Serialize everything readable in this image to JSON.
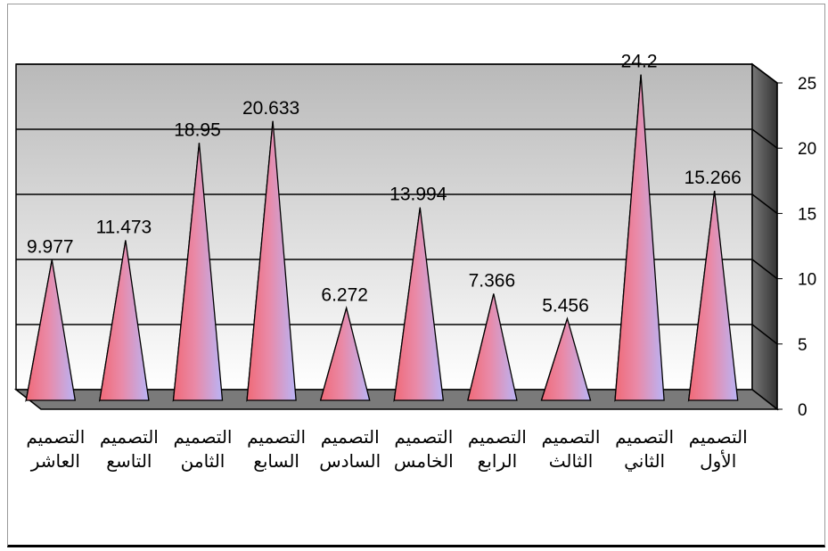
{
  "chart_data": {
    "type": "bar",
    "shape": "pyramid-3d",
    "categories": [
      [
        "التصميم",
        "العاشر"
      ],
      [
        "التصميم",
        "التاسع"
      ],
      [
        "التصميم",
        "الثامن"
      ],
      [
        "التصميم",
        "السابع"
      ],
      [
        "التصميم",
        "السادس"
      ],
      [
        "التصميم",
        "الخامس"
      ],
      [
        "التصميم",
        "الرابع"
      ],
      [
        "التصميم",
        "الثالث"
      ],
      [
        "التصميم",
        "الثاني"
      ],
      [
        "التصميم",
        "الأول"
      ]
    ],
    "values": [
      9.977,
      11.473,
      18.95,
      20.633,
      6.272,
      13.994,
      7.366,
      5.456,
      24.2,
      15.266
    ],
    "data_labels": [
      "9.977",
      "11.473",
      "18.95",
      "20.633",
      "6.272",
      "13.994",
      "7.366",
      "5.456",
      "24.2",
      "15.266"
    ],
    "y_ticks": [
      "0",
      "5",
      "10",
      "15",
      "20",
      "25"
    ],
    "ylim": [
      0,
      25
    ],
    "y_axis_side": "right",
    "grid": true,
    "legend": "none"
  },
  "colors": {
    "wall_top": "#b9b9b9",
    "wall_bottom": "#ffffff",
    "floor": "#7a7a7a",
    "side_wall": "#555555",
    "pyramid_dark": "#5a2418",
    "pyramid_mid": "#e8788a",
    "pyramid_light": "#b6b2f4"
  }
}
